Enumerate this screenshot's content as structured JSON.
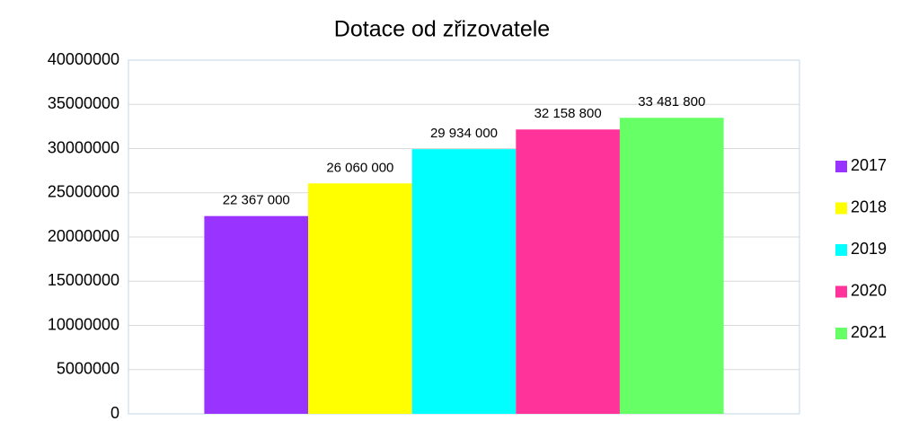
{
  "chart_data": {
    "type": "bar",
    "title": "Dotace od zřizovatele",
    "categories": [
      null
    ],
    "series": [
      {
        "name": "2017",
        "color": "#9933ff",
        "values": [
          22367000
        ],
        "value_labels": [
          "22 367 000"
        ]
      },
      {
        "name": "2018",
        "color": "#ffff00",
        "values": [
          26060000
        ],
        "value_labels": [
          "26 060 000"
        ]
      },
      {
        "name": "2019",
        "color": "#00ffff",
        "values": [
          29934000
        ],
        "value_labels": [
          "29 934 000"
        ]
      },
      {
        "name": "2020",
        "color": "#ff3399",
        "values": [
          32158800
        ],
        "value_labels": [
          "32 158 800"
        ]
      },
      {
        "name": "2021",
        "color": "#66ff66",
        "values": [
          33481800
        ],
        "value_labels": [
          "33 481 800"
        ]
      }
    ],
    "ylim": [
      0,
      40000000
    ],
    "yticks": [
      0,
      5000000,
      10000000,
      15000000,
      20000000,
      25000000,
      30000000,
      35000000,
      40000000
    ],
    "grid": true,
    "legend": "right"
  }
}
